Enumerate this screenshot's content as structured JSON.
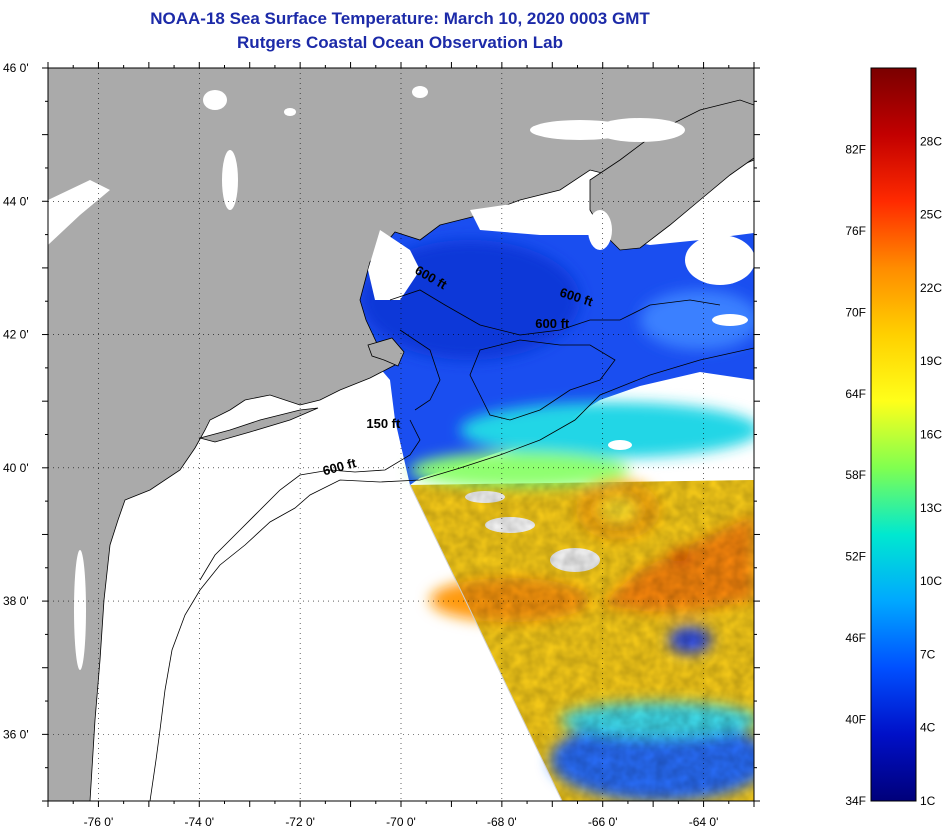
{
  "title_line1": "NOAA-18 Sea Surface Temperature:  March 10, 2020 0003 GMT",
  "title_line2": "Rutgers Coastal Ocean Observation Lab",
  "colors": {
    "land": "#aaaaaa",
    "title": "#1c2aa8",
    "coverage_edge": "#000000"
  },
  "chart_data": {
    "type": "heatmap",
    "title": "NOAA-18 Sea Surface Temperature:  March 10, 2020 0003 GMT",
    "subtitle": "Rutgers Coastal Ocean Observation Lab",
    "xlim": [
      -77,
      -63
    ],
    "ylim": [
      35,
      46
    ],
    "x_ticks": [
      -76,
      -74,
      -72,
      -70,
      -68,
      -66,
      -64
    ],
    "x_tick_labels": [
      "-76 0'",
      "-74 0'",
      "-72 0'",
      "-70 0'",
      "-68 0'",
      "-66 0'",
      "-64 0'"
    ],
    "y_ticks": [
      46,
      44,
      42,
      40,
      38,
      36
    ],
    "y_tick_labels": [
      "46 0'",
      "44 0'",
      "42 0'",
      "40 0'",
      "38 0'",
      "36 0'"
    ],
    "grid": true,
    "colorbar": {
      "range_f": [
        34,
        88
      ],
      "range_c": [
        1,
        31
      ],
      "f_labels": [
        "82F",
        "76F",
        "70F",
        "64F",
        "58F",
        "52F",
        "46F",
        "40F",
        "34F"
      ],
      "c_labels": [
        "28C",
        "25C",
        "22C",
        "19C",
        "16C",
        "13C",
        "10C",
        "7C",
        "4C",
        "1C"
      ],
      "stops": [
        "#7a0000",
        "#c20000",
        "#ff2a00",
        "#ff8c00",
        "#ffd000",
        "#ffff1a",
        "#80ff50",
        "#00e8d0",
        "#00a8ff",
        "#0050ff",
        "#0010c8",
        "#00007a"
      ]
    },
    "contour_labels": [
      {
        "text": "600 ft",
        "lon": -69.45,
        "lat": 42.8,
        "rotate": 30
      },
      {
        "text": "600 ft",
        "lon": -66.55,
        "lat": 42.5,
        "rotate": 18
      },
      {
        "text": "600 ft",
        "lon": -67.0,
        "lat": 42.1,
        "rotate": 0
      },
      {
        "text": "150 ft",
        "lon": -70.35,
        "lat": 40.6,
        "rotate": 0
      },
      {
        "text": "600 ft",
        "lon": -71.2,
        "lat": 39.95,
        "rotate": -15
      }
    ],
    "sst_features": [
      {
        "name": "warm-eddy",
        "lon": -66.3,
        "lat": 39.5,
        "temp_c": 19
      },
      {
        "name": "gulf-stream-warm-band",
        "lon": -64.8,
        "lat": 38.6,
        "temp_c": 23
      },
      {
        "name": "slope-sea-cool-band",
        "lon": -66.5,
        "lat": 40.2,
        "temp_c": 11
      },
      {
        "name": "gulf-of-maine-cold",
        "lon": -68.0,
        "lat": 42.8,
        "temp_c": 4
      },
      {
        "name": "southern-cool-patch",
        "lon": -65.5,
        "lat": 35.8,
        "temp_c": 8
      }
    ]
  }
}
